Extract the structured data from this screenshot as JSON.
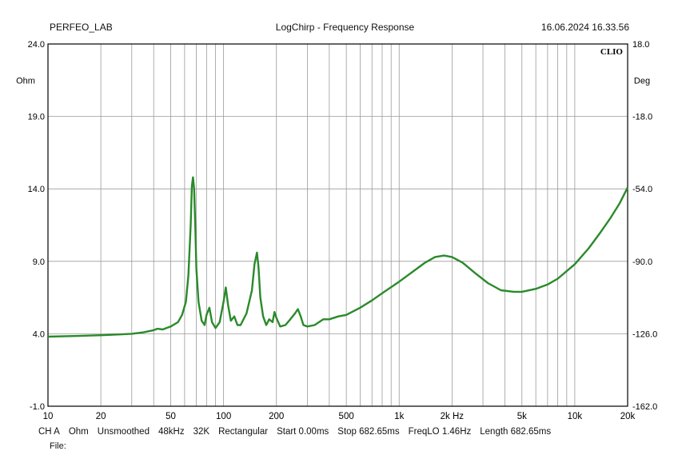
{
  "header": {
    "left": "PERFEO_LAB",
    "center": "LogChirp - Frequency Response",
    "right": "16.06.2024 16.33.56"
  },
  "brand": "CLIO",
  "footer": {
    "items": [
      "CH A",
      "Ohm",
      "Unsmoothed",
      "48kHz",
      "32K",
      "Rectangular",
      "Start 0.00ms",
      "Stop 682.65ms",
      "FreqLO 1.46Hz",
      "Length 682.65ms"
    ],
    "file_label": "File:"
  },
  "colors": {
    "curve": "#2a8a2a",
    "grid": "#9a9a9a",
    "frame": "#000000"
  },
  "chart_data": {
    "type": "line",
    "x_scale": "log",
    "xlim": [
      10,
      20000
    ],
    "ylim": [
      -1,
      24
    ],
    "y2lim": [
      -162,
      18
    ],
    "ylabel": "Ohm",
    "y2label": "Deg",
    "x_ticks": [
      "10",
      "20",
      "50",
      "100",
      "200",
      "500",
      "1k",
      "2k Hz",
      "5k",
      "10k",
      "20k"
    ],
    "x_tick_values": [
      10,
      20,
      50,
      100,
      200,
      500,
      1000,
      2000,
      5000,
      10000,
      20000
    ],
    "y_ticks": [
      "24.0",
      "19.0",
      "14.0",
      "9.0",
      "4.0",
      "-1.0"
    ],
    "y_tick_values": [
      24,
      19,
      14,
      9,
      4,
      -1
    ],
    "y2_ticks": [
      "18.0",
      "-18.0",
      "-54.0",
      "-90.0",
      "-126.0",
      "-162.0"
    ],
    "grid": true,
    "series": [
      {
        "x": [
          10,
          15,
          20,
          25,
          30,
          35,
          40,
          42,
          45,
          50,
          55,
          58,
          61,
          63,
          65,
          66,
          67,
          68,
          69,
          70,
          72,
          75,
          78,
          80,
          83,
          86,
          90,
          95,
          100,
          103,
          106,
          110,
          115,
          120,
          125,
          135,
          145,
          150,
          155,
          158,
          162,
          168,
          175,
          182,
          190,
          195,
          200,
          210,
          225,
          240,
          255,
          265,
          275,
          285,
          300,
          330,
          370,
          400,
          450,
          500,
          600,
          700,
          800,
          1000,
          1200,
          1400,
          1600,
          1800,
          2000,
          2300,
          2700,
          3200,
          3800,
          4500,
          5000,
          6000,
          7000,
          8000,
          10000,
          12000,
          14000,
          16000,
          18000,
          20000
        ],
        "y": [
          3.8,
          3.85,
          3.9,
          3.95,
          4.0,
          4.1,
          4.25,
          4.35,
          4.3,
          4.5,
          4.8,
          5.3,
          6.2,
          8.0,
          11.5,
          14.2,
          14.8,
          14.0,
          11.5,
          8.5,
          6.2,
          4.9,
          4.6,
          5.3,
          5.8,
          4.8,
          4.4,
          4.8,
          6.2,
          7.2,
          6.0,
          4.9,
          5.2,
          4.6,
          4.6,
          5.4,
          7.0,
          8.8,
          9.6,
          8.6,
          6.5,
          5.2,
          4.6,
          5.0,
          4.8,
          5.5,
          5.1,
          4.5,
          4.6,
          5.0,
          5.4,
          5.7,
          5.2,
          4.6,
          4.5,
          4.6,
          5.0,
          5.0,
          5.2,
          5.3,
          5.8,
          6.3,
          6.8,
          7.6,
          8.3,
          8.9,
          9.3,
          9.4,
          9.3,
          8.9,
          8.2,
          7.5,
          7.0,
          6.9,
          6.9,
          7.1,
          7.4,
          7.8,
          8.8,
          9.9,
          11.0,
          12.0,
          13.0,
          14.1
        ]
      }
    ]
  }
}
